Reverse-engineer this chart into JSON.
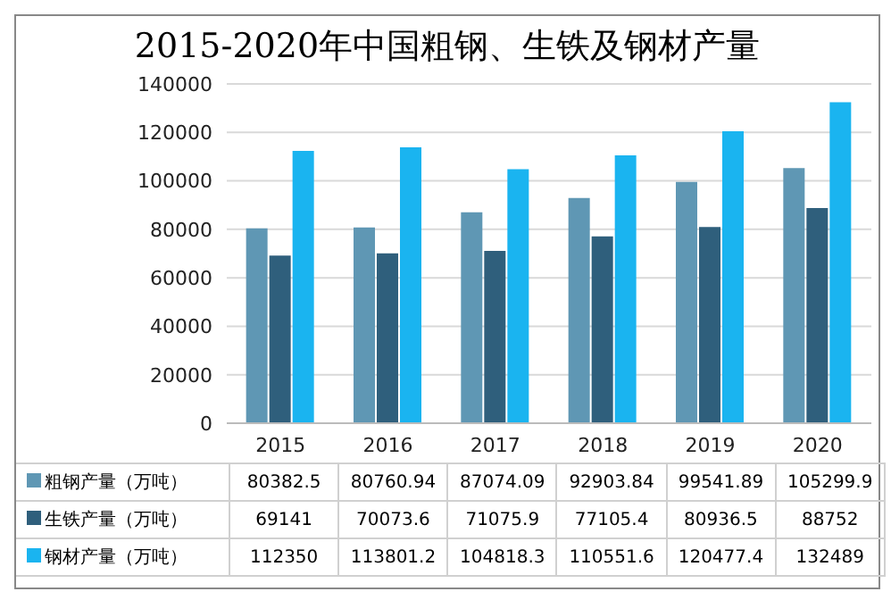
{
  "chart_data": {
    "type": "bar",
    "title": "2015-2020年中国粗钢、生铁及钢材产量",
    "categories": [
      "2015",
      "2016",
      "2017",
      "2018",
      "2019",
      "2020"
    ],
    "series": [
      {
        "name": "粗钢产量（万吨）",
        "color": "#5f97b4",
        "values": [
          80382.5,
          80760.94,
          87074.09,
          92903.84,
          99541.89,
          105299.9
        ]
      },
      {
        "name": "生铁产量（万吨）",
        "color": "#2f5f7c",
        "values": [
          69141,
          70073.6,
          71075.9,
          77105.4,
          80936.5,
          88752
        ]
      },
      {
        "name": "钢材产量（万吨）",
        "color": "#1ab4f0",
        "values": [
          112350,
          113801.2,
          104818.3,
          110551.6,
          120477.4,
          132489
        ]
      }
    ],
    "ylim": [
      0,
      140000
    ],
    "yticks": [
      0,
      20000,
      40000,
      60000,
      80000,
      100000,
      120000,
      140000
    ],
    "grid": "y",
    "legend": "bottom",
    "data_labels": true
  }
}
